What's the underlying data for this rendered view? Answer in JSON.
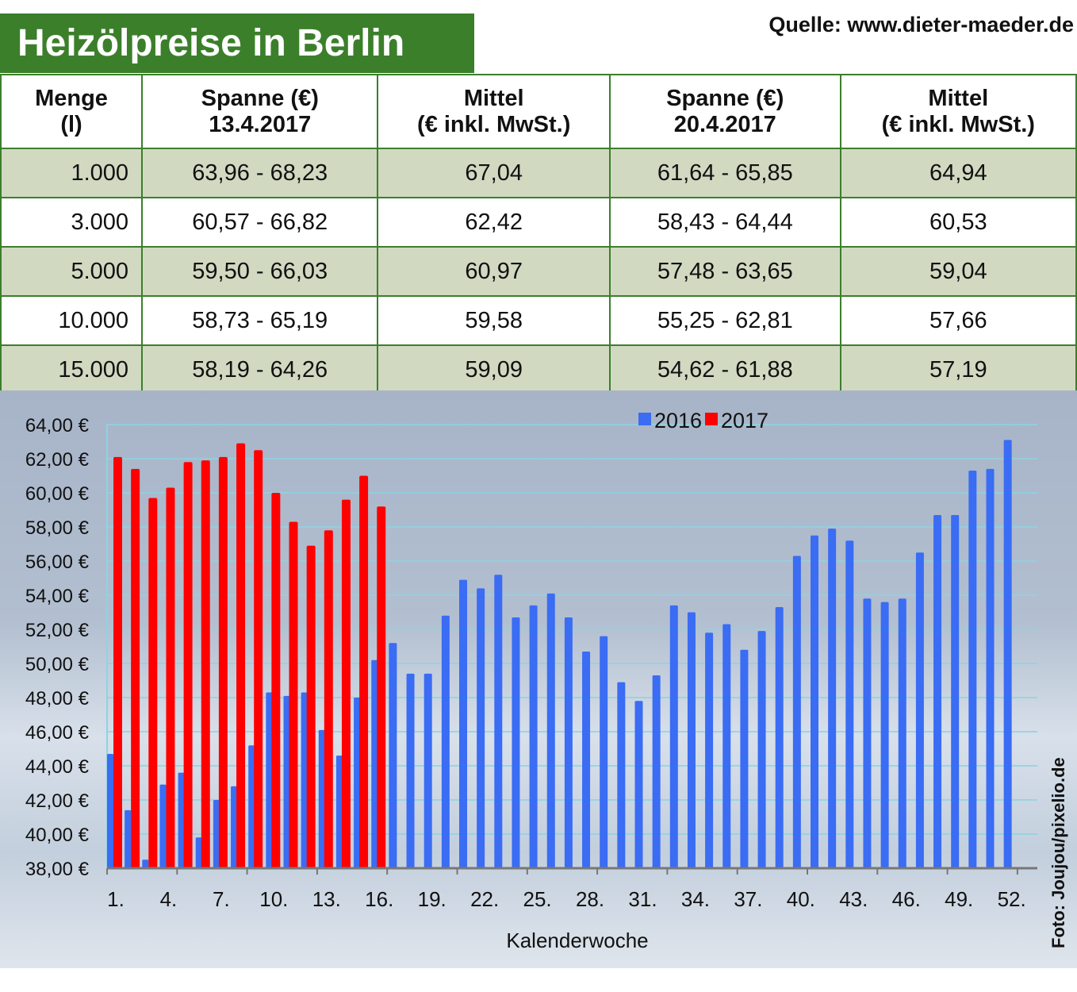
{
  "title": "Heizölpreise in Berlin",
  "source": "Quelle: www.dieter-maeder.de",
  "credit": "Foto: Joujou/pixelio.de",
  "table": {
    "headers": [
      [
        "Menge",
        "(l)"
      ],
      [
        "Spanne (€)",
        "13.4.2017"
      ],
      [
        "Mittel",
        "(€ inkl. MwSt.)"
      ],
      [
        "Spanne (€)",
        "20.4.2017"
      ],
      [
        "Mittel",
        "(€ inkl. MwSt.)"
      ]
    ],
    "rows": [
      [
        "1.000",
        "63,96 - 68,23",
        "67,04",
        "61,64 - 65,85",
        "64,94"
      ],
      [
        "3.000",
        "60,57 - 66,82",
        "62,42",
        "58,43 - 64,44",
        "60,53"
      ],
      [
        "5.000",
        "59,50 - 66,03",
        "60,97",
        "57,48 - 63,65",
        "59,04"
      ],
      [
        "10.000",
        "58,73 - 65,19",
        "59,58",
        "55,25 - 62,81",
        "57,66"
      ],
      [
        "15.000",
        "58,19 - 64,26",
        "59,09",
        "54,62 - 61,88",
        "57,19"
      ]
    ]
  },
  "chart_data": {
    "type": "bar",
    "xlabel": "Kalenderwoche",
    "ylabel": "",
    "ylim": [
      38,
      64
    ],
    "yticks": [
      "38,00 €",
      "40,00 €",
      "42,00 €",
      "44,00 €",
      "46,00 €",
      "48,00 €",
      "50,00 €",
      "52,00 €",
      "54,00 €",
      "56,00 €",
      "58,00 €",
      "60,00 €",
      "62,00 €",
      "64,00 €"
    ],
    "xticks": [
      "1.",
      "4.",
      "7.",
      "10.",
      "13.",
      "16.",
      "19.",
      "22.",
      "25.",
      "28.",
      "31.",
      "34.",
      "37.",
      "40.",
      "43.",
      "46.",
      "49.",
      "52."
    ],
    "legend": "top-center",
    "grid": true,
    "series": [
      {
        "name": "2016",
        "color": "#3a6cf4",
        "values": [
          44.7,
          41.4,
          38.5,
          42.9,
          43.6,
          39.8,
          42.0,
          42.8,
          45.2,
          48.3,
          48.1,
          48.3,
          46.1,
          44.6,
          48.0,
          50.2,
          51.2,
          49.4,
          49.4,
          52.8,
          54.9,
          54.4,
          55.2,
          52.7,
          53.4,
          54.1,
          52.7,
          50.7,
          51.6,
          48.9,
          47.8,
          49.3,
          53.4,
          53.0,
          51.8,
          52.3,
          50.8,
          51.9,
          53.3,
          56.3,
          57.5,
          57.9,
          57.2,
          53.8,
          53.6,
          53.8,
          56.5,
          58.7,
          58.7,
          61.3,
          61.4,
          63.1
        ]
      },
      {
        "name": "2017",
        "color": "#ff0000",
        "values": [
          62.1,
          61.4,
          59.7,
          60.3,
          61.8,
          61.9,
          62.1,
          62.9,
          62.5,
          60.0,
          58.3,
          56.9,
          57.8,
          59.6,
          61.0,
          59.2
        ]
      }
    ]
  }
}
